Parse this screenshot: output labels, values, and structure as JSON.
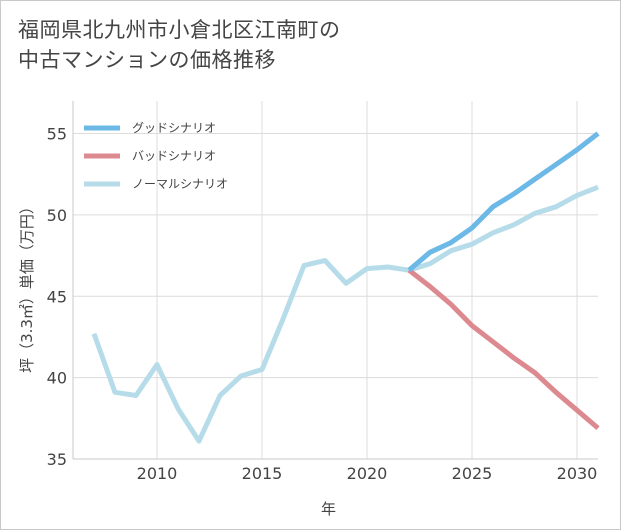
{
  "title": "福岡県北九州市小倉北区江南町の\n中古マンションの価格推移",
  "chart_data": {
    "type": "line",
    "title": "福岡県北九州市小倉北区江南町の中古マンションの価格推移",
    "xlabel": "年",
    "ylabel": "坪（3.3㎡）単価（万円）",
    "xlim": [
      2006,
      2031
    ],
    "ylim": [
      35,
      57
    ],
    "xticks": [
      2010,
      2015,
      2020,
      2025,
      2030
    ],
    "yticks": [
      35,
      40,
      45,
      50,
      55
    ],
    "grid": true,
    "legend_position": "top-left",
    "series": [
      {
        "name": "グッドシナリオ",
        "color": "#6cb8e6",
        "x": [
          2022,
          2023,
          2024,
          2025,
          2026,
          2027,
          2028,
          2029,
          2030,
          2031
        ],
        "y": [
          46.6,
          47.7,
          48.3,
          49.2,
          50.5,
          51.3,
          52.2,
          53.1,
          54.0,
          55.0
        ]
      },
      {
        "name": "バッドシナリオ",
        "color": "#dc8a90",
        "x": [
          2022,
          2023,
          2024,
          2025,
          2026,
          2027,
          2028,
          2029,
          2030,
          2031
        ],
        "y": [
          46.6,
          45.6,
          44.5,
          43.2,
          42.2,
          41.2,
          40.3,
          39.1,
          38.0,
          36.9
        ]
      },
      {
        "name": "ノーマルシナリオ",
        "color": "#b7dce9",
        "x": [
          2007,
          2008,
          2009,
          2010,
          2011,
          2012,
          2013,
          2014,
          2015,
          2016,
          2017,
          2018,
          2019,
          2020,
          2021,
          2022,
          2023,
          2024,
          2025,
          2026,
          2027,
          2028,
          2029,
          2030,
          2031
        ],
        "y": [
          42.7,
          39.1,
          38.9,
          40.8,
          38.1,
          36.1,
          38.9,
          40.1,
          40.5,
          43.6,
          46.9,
          47.2,
          45.8,
          46.7,
          46.8,
          46.6,
          47.0,
          47.8,
          48.2,
          48.9,
          49.4,
          50.1,
          50.5,
          51.2,
          51.7
        ]
      }
    ]
  }
}
